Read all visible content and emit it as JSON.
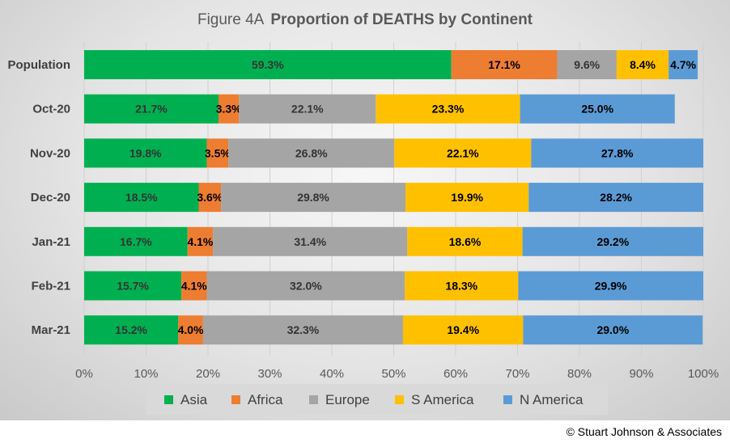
{
  "copyright": "© Stuart Johnson & Associates",
  "chart_data": {
    "type": "bar",
    "orientation": "horizontal",
    "stacked": true,
    "title_prefix": "Figure  4A",
    "title": "Proportion of DEATHS by Continent",
    "xlabel": "",
    "ylabel": "",
    "xlim": [
      0,
      100
    ],
    "x_ticks": [
      "0%",
      "10%",
      "20%",
      "30%",
      "40%",
      "50%",
      "60%",
      "70%",
      "80%",
      "90%",
      "100%"
    ],
    "grid": "vertical",
    "legend_position": "bottom",
    "categories": [
      "Population",
      "Oct-20",
      "Nov-20",
      "Dec-20",
      "Jan-21",
      "Feb-21",
      "Mar-21"
    ],
    "series": [
      {
        "name": "Asia",
        "color": "#00b050",
        "values": [
          59.3,
          21.7,
          19.8,
          18.5,
          16.7,
          15.7,
          15.2
        ],
        "labels": [
          "59.3%",
          "21.7%",
          "19.8%",
          "18.5%",
          "16.7%",
          "15.7%",
          "15.2%"
        ]
      },
      {
        "name": "Africa",
        "color": "#ed7d31",
        "values": [
          17.1,
          3.3,
          3.5,
          3.6,
          4.1,
          4.1,
          4.0
        ],
        "labels": [
          "17.1%",
          "3.3%",
          "3.5%",
          "3.6%",
          "4.1%",
          "4.1%",
          "4.0%"
        ]
      },
      {
        "name": "Europe",
        "color": "#a5a5a5",
        "values": [
          9.6,
          22.1,
          26.8,
          29.8,
          31.4,
          32.0,
          32.3
        ],
        "labels": [
          "9.6%",
          "22.1%",
          "26.8%",
          "29.8%",
          "31.4%",
          "32.0%",
          "32.3%"
        ]
      },
      {
        "name": "S America",
        "color": "#ffc000",
        "values": [
          8.4,
          23.3,
          22.1,
          19.9,
          18.6,
          18.3,
          19.4
        ],
        "labels": [
          "8.4%",
          "23.3%",
          "22.1%",
          "19.9%",
          "18.6%",
          "18.3%",
          "19.4%"
        ]
      },
      {
        "name": "N America",
        "color": "#5b9bd5",
        "values": [
          4.7,
          25.0,
          27.8,
          28.2,
          29.2,
          29.9,
          29.0
        ],
        "labels": [
          "4.7%",
          "25.0%",
          "27.8%",
          "28.2%",
          "29.2%",
          "29.9%",
          "29.0%"
        ]
      }
    ]
  }
}
